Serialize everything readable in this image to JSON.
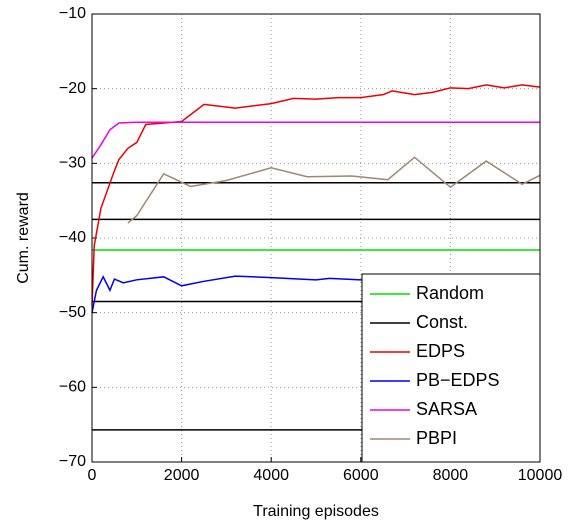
{
  "chart_data": {
    "type": "line",
    "xlabel": "Training episodes",
    "ylabel": "Cum. reward",
    "xlim": [
      0,
      10000
    ],
    "xticks": [
      0,
      2000,
      4000,
      6000,
      8000,
      10000
    ],
    "ylim": [
      -70,
      -10
    ],
    "yticks": [
      {
        "value": -70,
        "label": "−70"
      },
      {
        "value": -60,
        "label": "−60"
      },
      {
        "value": -50,
        "label": "−50"
      },
      {
        "value": -40,
        "label": "−40"
      },
      {
        "value": -30,
        "label": "−30"
      },
      {
        "value": -20,
        "label": "−20"
      },
      {
        "value": -10,
        "label": "−10"
      }
    ],
    "grid": true,
    "legend": "lower right",
    "series": [
      {
        "name": "Random",
        "color": "#00e000",
        "levels": [
          -41.6
        ]
      },
      {
        "name": "Const.",
        "color": "#000000",
        "levels": [
          -32.6,
          -37.5,
          -48.5,
          -65.7
        ]
      },
      {
        "name": "EDPS",
        "color": "#ee0000",
        "x": [
          0,
          50,
          200,
          500,
          600,
          800,
          1000,
          1200,
          2000,
          2500,
          3200,
          4000,
          4500,
          5000,
          5500,
          6000,
          6500,
          6700,
          7200,
          7600,
          8000,
          8400,
          8800,
          9200,
          9600,
          10000
        ],
        "values": [
          -49,
          -41,
          -36,
          -31,
          -29.5,
          -28,
          -27.2,
          -24.8,
          -24.4,
          -22.1,
          -22.6,
          -22,
          -21.3,
          -21.4,
          -21.2,
          -21.2,
          -20.8,
          -20.3,
          -20.8,
          -20.5,
          -19.9,
          -20,
          -19.5,
          -19.9,
          -19.5,
          -19.8
        ]
      },
      {
        "name": "PB−EDPS",
        "color": "#0000ee",
        "x": [
          0,
          100,
          250,
          400,
          500,
          700,
          1000,
          1600,
          2000,
          2500,
          3200,
          4000,
          5000,
          5300,
          6000,
          7000,
          10000
        ],
        "values": [
          -50,
          -47,
          -45.2,
          -47,
          -45.5,
          -46,
          -45.6,
          -45.2,
          -46.4,
          -45.8,
          -45.1,
          -45.3,
          -45.6,
          -45.4,
          -45.6,
          -45.7,
          -45.3
        ]
      },
      {
        "name": "SARSA",
        "color": "#ee00ee",
        "x": [
          0,
          200,
          400,
          600,
          1000,
          10000
        ],
        "values": [
          -29.3,
          -27.5,
          -25.5,
          -24.6,
          -24.5,
          -24.5
        ]
      },
      {
        "name": "PBPI",
        "color": "#a08870",
        "x": [
          800,
          1000,
          1600,
          2200,
          3000,
          4000,
          4800,
          5800,
          6600,
          7200,
          8000,
          8800,
          9600,
          10000
        ],
        "values": [
          -38,
          -37,
          -31.4,
          -33.1,
          -32.3,
          -30.6,
          -31.8,
          -31.7,
          -32.2,
          -29.2,
          -33.2,
          -29.7,
          -32.8,
          -31.6
        ]
      }
    ]
  }
}
